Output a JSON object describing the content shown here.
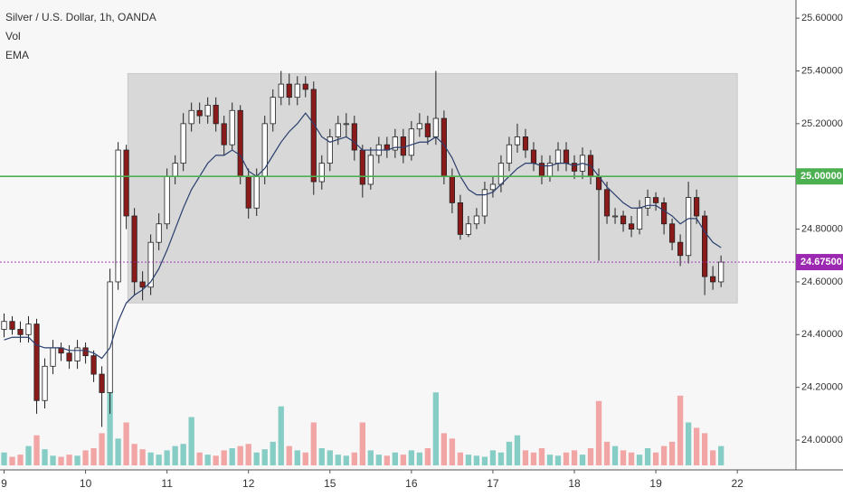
{
  "chart_data": {
    "type": "candlestick",
    "title": "Silver / U.S. Dollar, 1h, OANDA",
    "indicators": [
      "Vol",
      "EMA"
    ],
    "up_color": "#ffffff",
    "down_color": "#8b1a1a",
    "outline_color": "#222222",
    "vol_up_color": "#86cdc6",
    "vol_down_color": "#f2a5a5",
    "ema_color": "#2a3f6e",
    "ylim": [
      23.887,
      25.669
    ],
    "yticks": [
      {
        "value": 24.0,
        "label": "24.00000"
      },
      {
        "value": 24.2,
        "label": "24.20000"
      },
      {
        "value": 24.4,
        "label": "24.40000"
      },
      {
        "value": 24.6,
        "label": "24.60000"
      },
      {
        "value": 24.8,
        "label": "24.80000"
      },
      {
        "value": 25.0,
        "label": "25.00000"
      },
      {
        "value": 25.2,
        "label": "25.20000"
      },
      {
        "value": 25.4,
        "label": "25.40000"
      },
      {
        "value": 25.6,
        "label": "25.60000"
      }
    ],
    "xlim": [
      -0.5,
      97.2
    ],
    "xticks": [
      {
        "value": 0,
        "label": "9"
      },
      {
        "value": 10,
        "label": "10"
      },
      {
        "value": 20,
        "label": "11"
      },
      {
        "value": 30,
        "label": "12"
      },
      {
        "value": 40,
        "label": "15"
      },
      {
        "value": 50,
        "label": "16"
      },
      {
        "value": 60,
        "label": "17"
      },
      {
        "value": 70,
        "label": "18"
      },
      {
        "value": 80,
        "label": "19"
      },
      {
        "value": 90,
        "label": "22"
      }
    ],
    "range_box": {
      "x": [
        15.2,
        90
      ],
      "y": [
        24.52,
        25.39
      ]
    },
    "lines": [
      {
        "value": 25.0,
        "label": "25.00000",
        "color": "#4caf50"
      },
      {
        "value": 24.675,
        "label": "24.67500",
        "color": "#9c27b0"
      }
    ],
    "ohlc": {
      "open": [
        24.42,
        24.45,
        24.42,
        24.4,
        24.44,
        24.15,
        24.28,
        24.35,
        24.33,
        24.3,
        24.35,
        24.32,
        24.25,
        24.18,
        24.6,
        25.1,
        24.85,
        24.6,
        24.58,
        24.75,
        24.82,
        25.0,
        25.05,
        25.2,
        25.25,
        25.23,
        25.27,
        25.2,
        25.12,
        25.25,
        25.0,
        24.88,
        25.0,
        25.2,
        25.3,
        25.35,
        25.3,
        25.35,
        25.33,
        24.98,
        25.05,
        25.15,
        25.2,
        25.2,
        25.1,
        24.97,
        25.08,
        25.12,
        25.1,
        25.15,
        25.08,
        25.18,
        25.2,
        25.15,
        25.22,
        25.0,
        24.9,
        24.78,
        24.82,
        24.85,
        24.95,
        24.97,
        25.05,
        25.12,
        25.15,
        25.1,
        25.05,
        25.0,
        25.05,
        25.1,
        25.05,
        25.02,
        25.08,
        25.0,
        24.95,
        24.85,
        24.85,
        24.82,
        24.8,
        24.88,
        24.92,
        24.9,
        24.82,
        24.75,
        24.7,
        24.92,
        24.85,
        24.62,
        24.6
      ],
      "high": [
        24.48,
        24.47,
        24.45,
        24.47,
        24.46,
        24.31,
        24.38,
        24.37,
        24.36,
        24.38,
        24.37,
        24.34,
        24.28,
        24.65,
        25.13,
        25.12,
        24.88,
        24.64,
        24.78,
        24.86,
        25.03,
        25.08,
        25.24,
        25.28,
        25.28,
        25.3,
        25.3,
        25.23,
        25.28,
        25.27,
        25.03,
        25.03,
        25.23,
        25.33,
        25.4,
        25.39,
        25.38,
        25.38,
        25.36,
        25.08,
        25.18,
        25.23,
        25.24,
        25.23,
        25.12,
        25.11,
        25.15,
        25.15,
        25.18,
        25.18,
        25.21,
        25.24,
        25.23,
        25.4,
        25.25,
        25.03,
        24.93,
        24.85,
        24.88,
        24.98,
        25.0,
        25.08,
        25.15,
        25.2,
        25.18,
        25.13,
        25.08,
        25.08,
        25.13,
        25.13,
        25.08,
        25.11,
        25.1,
        25.03,
        24.98,
        24.88,
        24.87,
        24.85,
        24.91,
        24.95,
        24.94,
        24.92,
        24.84,
        24.78,
        24.98,
        24.95,
        24.87,
        24.66,
        24.7
      ],
      "low": [
        24.39,
        24.4,
        24.37,
        24.37,
        24.1,
        24.12,
        24.25,
        24.3,
        24.27,
        24.27,
        24.29,
        24.22,
        24.05,
        24.1,
        24.57,
        24.8,
        24.55,
        24.53,
        24.55,
        24.72,
        24.8,
        24.97,
        25.02,
        25.17,
        25.2,
        25.2,
        25.17,
        25.08,
        25.1,
        24.97,
        24.84,
        24.85,
        24.97,
        25.17,
        25.27,
        25.27,
        25.27,
        25.3,
        24.93,
        24.95,
        25.02,
        25.12,
        25.15,
        25.06,
        24.92,
        24.95,
        25.05,
        25.07,
        25.07,
        25.05,
        25.06,
        25.15,
        25.12,
        25.12,
        24.97,
        24.86,
        24.76,
        24.77,
        24.8,
        24.82,
        24.92,
        24.94,
        25.02,
        25.09,
        25.07,
        25.02,
        24.97,
        24.98,
        25.02,
        25.02,
        24.99,
        24.99,
        24.97,
        24.68,
        24.82,
        24.82,
        24.79,
        24.77,
        24.78,
        24.85,
        24.87,
        24.78,
        24.72,
        24.66,
        24.67,
        24.82,
        24.55,
        24.57,
        24.58
      ],
      "close": [
        24.45,
        24.42,
        24.4,
        24.44,
        24.15,
        24.28,
        24.35,
        24.33,
        24.3,
        24.35,
        24.32,
        24.25,
        24.18,
        24.6,
        25.1,
        24.85,
        24.6,
        24.58,
        24.75,
        24.82,
        25.0,
        25.05,
        25.2,
        25.25,
        25.23,
        25.27,
        25.2,
        25.12,
        25.25,
        25.0,
        24.88,
        25.0,
        25.2,
        25.3,
        25.35,
        25.3,
        25.35,
        25.33,
        24.98,
        25.05,
        25.15,
        25.2,
        25.2,
        25.1,
        24.97,
        25.08,
        25.12,
        25.1,
        25.15,
        25.08,
        25.18,
        25.2,
        25.15,
        25.22,
        25.0,
        24.9,
        24.78,
        24.82,
        24.85,
        24.95,
        24.97,
        25.05,
        25.12,
        25.15,
        25.1,
        25.05,
        25.0,
        25.05,
        25.1,
        25.05,
        25.02,
        25.08,
        25.0,
        24.95,
        24.85,
        24.85,
        24.82,
        24.8,
        24.88,
        24.92,
        24.9,
        24.82,
        24.75,
        24.7,
        24.92,
        24.85,
        24.62,
        24.6,
        24.675
      ]
    },
    "vlim": [
      0,
      80
    ],
    "volume": [
      12,
      8,
      10,
      18,
      28,
      15,
      9,
      8,
      10,
      9,
      14,
      16,
      30,
      70,
      25,
      40,
      20,
      15,
      12,
      10,
      14,
      18,
      20,
      45,
      12,
      10,
      9,
      14,
      16,
      18,
      20,
      12,
      15,
      22,
      55,
      18,
      14,
      12,
      40,
      16,
      14,
      10,
      9,
      12,
      40,
      14,
      10,
      9,
      12,
      10,
      14,
      12,
      16,
      68,
      30,
      25,
      12,
      10,
      9,
      8,
      14,
      12,
      22,
      28,
      14,
      12,
      16,
      10,
      9,
      12,
      14,
      10,
      16,
      60,
      22,
      18,
      14,
      12,
      10,
      16,
      12,
      18,
      22,
      65,
      40,
      35,
      30,
      14,
      18
    ],
    "ema": [
      24.38,
      24.39,
      24.39,
      24.39,
      24.36,
      24.35,
      24.35,
      24.35,
      24.34,
      24.34,
      24.34,
      24.33,
      24.31,
      24.35,
      24.45,
      24.52,
      24.55,
      24.57,
      24.6,
      24.65,
      24.72,
      24.8,
      24.88,
      24.95,
      25.0,
      25.05,
      25.08,
      25.08,
      25.1,
      25.08,
      25.02,
      25.0,
      25.03,
      25.08,
      25.13,
      25.17,
      25.2,
      25.24,
      25.2,
      25.15,
      25.13,
      25.14,
      25.15,
      25.13,
      25.1,
      25.1,
      25.1,
      25.1,
      25.11,
      25.11,
      25.12,
      25.13,
      25.13,
      25.15,
      25.12,
      25.07,
      25.0,
      24.95,
      24.93,
      24.93,
      24.94,
      24.97,
      25.0,
      25.03,
      25.05,
      25.05,
      25.04,
      25.04,
      25.05,
      25.05,
      25.04,
      25.05,
      25.04,
      25.0,
      24.96,
      24.93,
      24.9,
      24.88,
      24.88,
      24.89,
      24.89,
      24.87,
      24.85,
      24.82,
      24.84,
      24.84,
      24.79,
      24.75,
      24.73
    ]
  }
}
